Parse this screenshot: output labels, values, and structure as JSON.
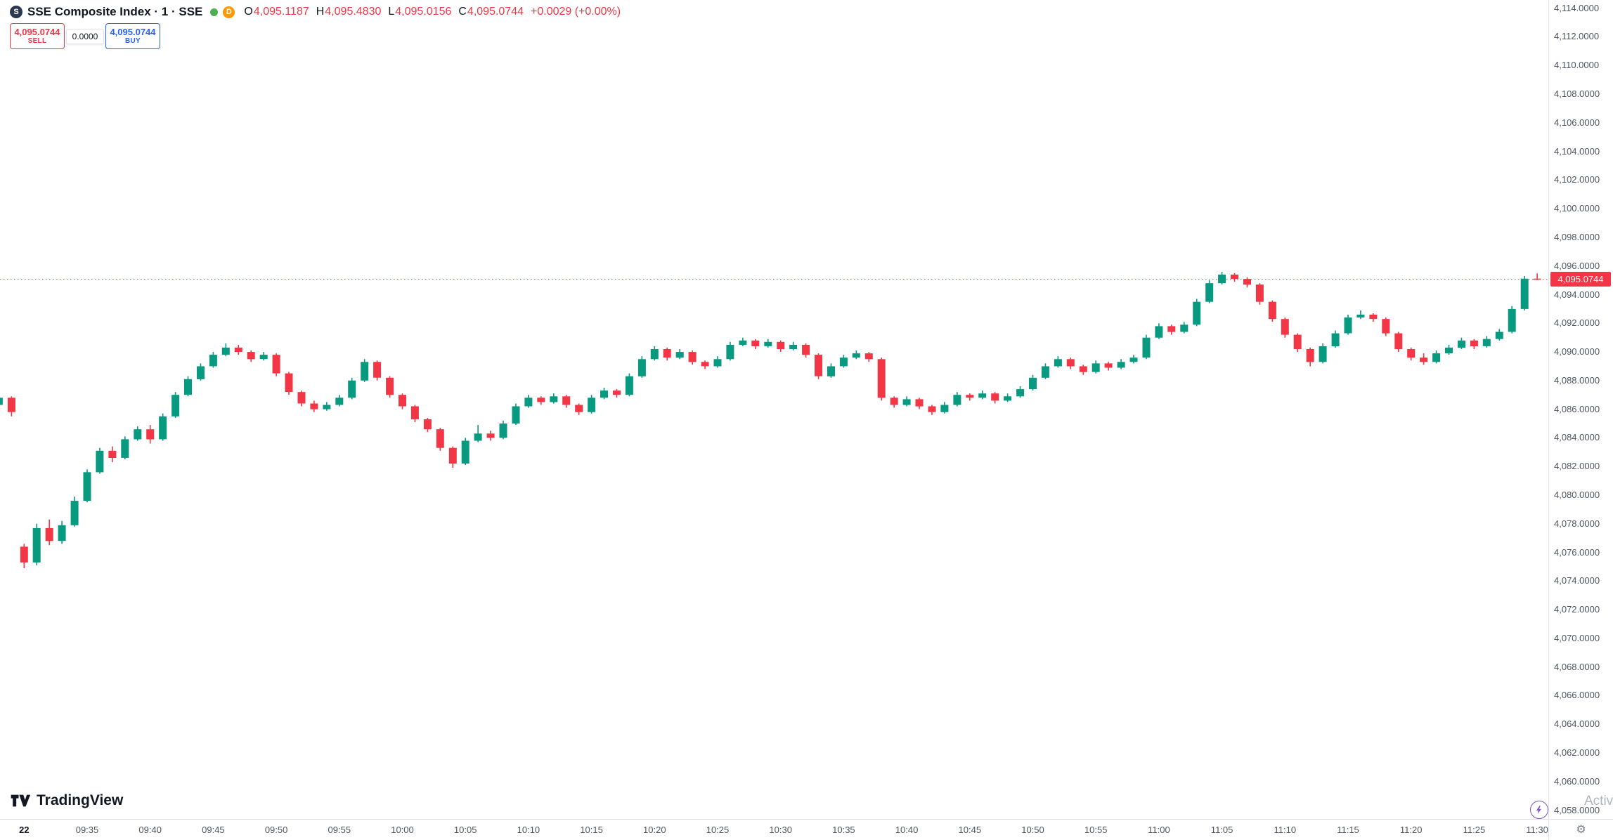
{
  "header": {
    "logo_letter": "S",
    "symbol_title": "SSE Composite Index · 1 · SSE",
    "badge_label": "D",
    "ohlc": {
      "open_label": "O",
      "open": "4,095.1187",
      "high_label": "H",
      "high": "4,095.4830",
      "low_label": "L",
      "low": "4,095.0156",
      "close_label": "C",
      "close": "4,095.0744",
      "change": "+0.0029 (+0.00%)"
    }
  },
  "trade_panel": {
    "sell_price": "4,095.0744",
    "sell_label": "SELL",
    "spread": "0.0000",
    "buy_price": "4,095.0744",
    "buy_label": "BUY"
  },
  "watermark": {
    "logo_text": "TradingView"
  },
  "footer_right": {
    "partial_text": "Activ"
  },
  "colors": {
    "up": "#089981",
    "down": "#f23645",
    "buy_accent": "#2962ff",
    "sell_accent": "#f23645",
    "badge_orange": "#ff9800",
    "status_green": "#4caf50",
    "price_tag_bg": "#f23645"
  },
  "price_scale": {
    "last_price_label": "4,095.0744",
    "ticks": [
      {
        "label": "4,114.0000",
        "value": 4114
      },
      {
        "label": "4,112.0000",
        "value": 4112
      },
      {
        "label": "4,110.0000",
        "value": 4110
      },
      {
        "label": "4,108.0000",
        "value": 4108
      },
      {
        "label": "4,106.0000",
        "value": 4106
      },
      {
        "label": "4,104.0000",
        "value": 4104
      },
      {
        "label": "4,102.0000",
        "value": 4102
      },
      {
        "label": "4,100.0000",
        "value": 4100
      },
      {
        "label": "4,098.0000",
        "value": 4098
      },
      {
        "label": "4,096.0000",
        "value": 4096
      },
      {
        "label": "4,094.0000",
        "value": 4094
      },
      {
        "label": "4,092.0000",
        "value": 4092
      },
      {
        "label": "4,090.0000",
        "value": 4090
      },
      {
        "label": "4,088.0000",
        "value": 4088
      },
      {
        "label": "4,086.0000",
        "value": 4086
      },
      {
        "label": "4,084.0000",
        "value": 4084
      },
      {
        "label": "4,082.0000",
        "value": 4082
      },
      {
        "label": "4,080.0000",
        "value": 4080
      },
      {
        "label": "4,078.0000",
        "value": 4078
      },
      {
        "label": "4,076.0000",
        "value": 4076
      },
      {
        "label": "4,074.0000",
        "value": 4074
      },
      {
        "label": "4,072.0000",
        "value": 4072
      },
      {
        "label": "4,070.0000",
        "value": 4070
      },
      {
        "label": "4,068.0000",
        "value": 4068
      },
      {
        "label": "4,066.0000",
        "value": 4066
      },
      {
        "label": "4,064.0000",
        "value": 4064
      },
      {
        "label": "4,062.0000",
        "value": 4062
      },
      {
        "label": "4,060.0000",
        "value": 4060
      },
      {
        "label": "4,058.0000",
        "value": 4058
      }
    ]
  },
  "time_scale": {
    "ticks": [
      {
        "label": "22",
        "m": 0
      },
      {
        "label": "09:35",
        "m": 5
      },
      {
        "label": "09:40",
        "m": 10
      },
      {
        "label": "09:45",
        "m": 15
      },
      {
        "label": "09:50",
        "m": 20
      },
      {
        "label": "09:55",
        "m": 25
      },
      {
        "label": "10:00",
        "m": 30
      },
      {
        "label": "10:05",
        "m": 35
      },
      {
        "label": "10:10",
        "m": 40
      },
      {
        "label": "10:15",
        "m": 45
      },
      {
        "label": "10:20",
        "m": 50
      },
      {
        "label": "10:25",
        "m": 55
      },
      {
        "label": "10:30",
        "m": 60
      },
      {
        "label": "10:35",
        "m": 65
      },
      {
        "label": "10:40",
        "m": 70
      },
      {
        "label": "10:45",
        "m": 75
      },
      {
        "label": "10:50",
        "m": 80
      },
      {
        "label": "10:55",
        "m": 85
      },
      {
        "label": "11:00",
        "m": 90
      },
      {
        "label": "11:05",
        "m": 95
      },
      {
        "label": "11:10",
        "m": 100
      },
      {
        "label": "11:15",
        "m": 105
      },
      {
        "label": "11:20",
        "m": 110
      },
      {
        "label": "11:25",
        "m": 115
      },
      {
        "label": "11:30",
        "m": 120
      }
    ]
  },
  "chart_data": {
    "type": "candlestick",
    "title": "SSE Composite Index, 1 minute, SSE",
    "xlabel": "",
    "ylabel": "",
    "y_axis": {
      "min": 4058,
      "max": 4114,
      "step": 2
    },
    "up_color": "#089981",
    "down_color": "#f23645",
    "grid": false,
    "price_line": {
      "value": 4095.0744,
      "color": "#f23645",
      "label": "4,095.0744"
    },
    "candles": [
      [
        "14:59",
        4086.3,
        4087.0,
        4086.1,
        4086.8
      ],
      [
        "15:00",
        4086.8,
        4086.9,
        4085.5,
        4085.8
      ],
      [
        "09:30",
        4076.4,
        4076.6,
        4074.9,
        4075.3
      ],
      [
        "09:31",
        4075.3,
        4078.0,
        4075.1,
        4077.7
      ],
      [
        "09:32",
        4077.7,
        4078.3,
        4076.5,
        4076.8
      ],
      [
        "09:33",
        4076.8,
        4078.2,
        4076.6,
        4077.9
      ],
      [
        "09:34",
        4077.9,
        4079.9,
        4077.8,
        4079.6
      ],
      [
        "09:35",
        4079.6,
        4081.8,
        4079.5,
        4081.6
      ],
      [
        "09:36",
        4081.6,
        4083.3,
        4081.5,
        4083.1
      ],
      [
        "09:37",
        4083.1,
        4083.4,
        4082.3,
        4082.6
      ],
      [
        "09:38",
        4082.6,
        4084.1,
        4082.5,
        4083.9
      ],
      [
        "09:39",
        4083.9,
        4084.8,
        4083.8,
        4084.6
      ],
      [
        "09:40",
        4084.6,
        4084.9,
        4083.6,
        4083.9
      ],
      [
        "09:41",
        4083.9,
        4085.7,
        4083.8,
        4085.5
      ],
      [
        "09:42",
        4085.5,
        4087.2,
        4085.4,
        4087.0
      ],
      [
        "09:43",
        4087.0,
        4088.3,
        4086.9,
        4088.1
      ],
      [
        "09:44",
        4088.1,
        4089.2,
        4088.0,
        4089.0
      ],
      [
        "09:45",
        4089.0,
        4090.0,
        4088.9,
        4089.8
      ],
      [
        "09:46",
        4089.8,
        4090.6,
        4089.7,
        4090.3
      ],
      [
        "09:47",
        4090.3,
        4090.5,
        4089.8,
        4090.0
      ],
      [
        "09:48",
        4090.0,
        4090.1,
        4089.3,
        4089.5
      ],
      [
        "09:49",
        4089.5,
        4090.0,
        4089.4,
        4089.8
      ],
      [
        "09:50",
        4089.8,
        4089.9,
        4088.3,
        4088.5
      ],
      [
        "09:51",
        4088.5,
        4088.6,
        4087.0,
        4087.2
      ],
      [
        "09:52",
        4087.2,
        4087.3,
        4086.2,
        4086.4
      ],
      [
        "09:53",
        4086.4,
        4086.6,
        4085.8,
        4086.0
      ],
      [
        "09:54",
        4086.0,
        4086.5,
        4085.9,
        4086.3
      ],
      [
        "09:55",
        4086.3,
        4087.0,
        4086.2,
        4086.8
      ],
      [
        "09:56",
        4086.8,
        4088.2,
        4086.7,
        4088.0
      ],
      [
        "09:57",
        4088.0,
        4089.5,
        4087.9,
        4089.3
      ],
      [
        "09:58",
        4089.3,
        4089.4,
        4088.0,
        4088.2
      ],
      [
        "09:59",
        4088.2,
        4088.3,
        4086.8,
        4087.0
      ],
      [
        "10:00",
        4087.0,
        4087.1,
        4086.0,
        4086.2
      ],
      [
        "10:01",
        4086.2,
        4086.3,
        4085.1,
        4085.3
      ],
      [
        "10:02",
        4085.3,
        4085.4,
        4084.4,
        4084.6
      ],
      [
        "10:03",
        4084.6,
        4084.7,
        4083.1,
        4083.3
      ],
      [
        "10:04",
        4083.3,
        4083.4,
        4081.9,
        4082.2
      ],
      [
        "10:05",
        4082.2,
        4084.0,
        4082.1,
        4083.8
      ],
      [
        "10:06",
        4083.8,
        4084.9,
        4083.7,
        4084.3
      ],
      [
        "10:07",
        4084.3,
        4084.5,
        4083.8,
        4084.0
      ],
      [
        "10:08",
        4084.0,
        4085.2,
        4083.9,
        4085.0
      ],
      [
        "10:09",
        4085.0,
        4086.4,
        4084.9,
        4086.2
      ],
      [
        "10:10",
        4086.2,
        4087.0,
        4086.1,
        4086.8
      ],
      [
        "10:11",
        4086.8,
        4086.9,
        4086.3,
        4086.5
      ],
      [
        "10:12",
        4086.5,
        4087.1,
        4086.4,
        4086.9
      ],
      [
        "10:13",
        4086.9,
        4087.0,
        4086.1,
        4086.3
      ],
      [
        "10:14",
        4086.3,
        4086.4,
        4085.6,
        4085.8
      ],
      [
        "10:15",
        4085.8,
        4087.0,
        4085.7,
        4086.8
      ],
      [
        "10:16",
        4086.8,
        4087.5,
        4086.7,
        4087.3
      ],
      [
        "10:17",
        4087.3,
        4087.4,
        4086.8,
        4087.0
      ],
      [
        "10:18",
        4087.0,
        4088.5,
        4086.9,
        4088.3
      ],
      [
        "10:19",
        4088.3,
        4089.7,
        4088.2,
        4089.5
      ],
      [
        "10:20",
        4089.5,
        4090.4,
        4089.4,
        4090.2
      ],
      [
        "10:21",
        4090.2,
        4090.3,
        4089.4,
        4089.6
      ],
      [
        "10:22",
        4089.6,
        4090.2,
        4089.5,
        4090.0
      ],
      [
        "10:23",
        4090.0,
        4090.1,
        4089.1,
        4089.3
      ],
      [
        "10:24",
        4089.3,
        4089.4,
        4088.8,
        4089.0
      ],
      [
        "10:25",
        4089.0,
        4089.7,
        4088.9,
        4089.5
      ],
      [
        "10:26",
        4089.5,
        4090.7,
        4089.4,
        4090.5
      ],
      [
        "10:27",
        4090.5,
        4091.0,
        4090.4,
        4090.8
      ],
      [
        "10:28",
        4090.8,
        4090.9,
        4090.2,
        4090.4
      ],
      [
        "10:29",
        4090.4,
        4090.9,
        4090.3,
        4090.7
      ],
      [
        "10:30",
        4090.7,
        4090.8,
        4090.0,
        4090.2
      ],
      [
        "10:31",
        4090.2,
        4090.7,
        4090.1,
        4090.5
      ],
      [
        "10:32",
        4090.5,
        4090.6,
        4089.6,
        4089.8
      ],
      [
        "10:33",
        4089.8,
        4089.9,
        4088.1,
        4088.3
      ],
      [
        "10:34",
        4088.3,
        4089.2,
        4088.2,
        4089.0
      ],
      [
        "10:35",
        4089.0,
        4089.8,
        4088.9,
        4089.6
      ],
      [
        "10:36",
        4089.6,
        4090.1,
        4089.5,
        4089.9
      ],
      [
        "10:37",
        4089.9,
        4090.0,
        4089.3,
        4089.5
      ],
      [
        "10:38",
        4089.5,
        4089.6,
        4086.6,
        4086.8
      ],
      [
        "10:39",
        4086.8,
        4086.9,
        4086.1,
        4086.3
      ],
      [
        "10:40",
        4086.3,
        4086.9,
        4086.2,
        4086.7
      ],
      [
        "10:41",
        4086.7,
        4086.8,
        4086.0,
        4086.2
      ],
      [
        "10:42",
        4086.2,
        4086.3,
        4085.6,
        4085.8
      ],
      [
        "10:43",
        4085.8,
        4086.5,
        4085.7,
        4086.3
      ],
      [
        "10:44",
        4086.3,
        4087.2,
        4086.2,
        4087.0
      ],
      [
        "10:45",
        4087.0,
        4087.1,
        4086.6,
        4086.8
      ],
      [
        "10:46",
        4086.8,
        4087.3,
        4086.7,
        4087.1
      ],
      [
        "10:47",
        4087.1,
        4087.2,
        4086.4,
        4086.6
      ],
      [
        "10:48",
        4086.6,
        4087.1,
        4086.5,
        4086.9
      ],
      [
        "10:49",
        4086.9,
        4087.6,
        4086.8,
        4087.4
      ],
      [
        "10:50",
        4087.4,
        4088.4,
        4087.3,
        4088.2
      ],
      [
        "10:51",
        4088.2,
        4089.2,
        4088.1,
        4089.0
      ],
      [
        "10:52",
        4089.0,
        4089.7,
        4088.9,
        4089.5
      ],
      [
        "10:53",
        4089.5,
        4089.6,
        4088.8,
        4089.0
      ],
      [
        "10:54",
        4089.0,
        4089.1,
        4088.4,
        4088.6
      ],
      [
        "10:55",
        4088.6,
        4089.4,
        4088.5,
        4089.2
      ],
      [
        "10:56",
        4089.2,
        4089.3,
        4088.7,
        4088.9
      ],
      [
        "10:57",
        4088.9,
        4089.5,
        4088.8,
        4089.3
      ],
      [
        "10:58",
        4089.3,
        4089.8,
        4089.2,
        4089.6
      ],
      [
        "10:59",
        4089.6,
        4091.2,
        4089.5,
        4091.0
      ],
      [
        "11:00",
        4091.0,
        4092.0,
        4090.9,
        4091.8
      ],
      [
        "11:01",
        4091.8,
        4091.9,
        4091.2,
        4091.4
      ],
      [
        "11:02",
        4091.4,
        4092.1,
        4091.3,
        4091.9
      ],
      [
        "11:03",
        4091.9,
        4093.7,
        4091.8,
        4093.5
      ],
      [
        "11:04",
        4093.5,
        4095.0,
        4093.4,
        4094.8
      ],
      [
        "11:05",
        4094.8,
        4095.6,
        4094.7,
        4095.4
      ],
      [
        "11:06",
        4095.4,
        4095.5,
        4094.9,
        4095.1
      ],
      [
        "11:07",
        4095.1,
        4095.2,
        4094.5,
        4094.7
      ],
      [
        "11:08",
        4094.7,
        4094.8,
        4093.3,
        4093.5
      ],
      [
        "11:09",
        4093.5,
        4093.6,
        4092.1,
        4092.3
      ],
      [
        "11:10",
        4092.3,
        4092.4,
        4091.0,
        4091.2
      ],
      [
        "11:11",
        4091.2,
        4091.3,
        4090.0,
        4090.2
      ],
      [
        "11:12",
        4090.2,
        4090.3,
        4089.0,
        4089.3
      ],
      [
        "11:13",
        4089.3,
        4090.6,
        4089.2,
        4090.4
      ],
      [
        "11:14",
        4090.4,
        4091.5,
        4090.3,
        4091.3
      ],
      [
        "11:15",
        4091.3,
        4092.6,
        4091.2,
        4092.4
      ],
      [
        "11:16",
        4092.4,
        4092.9,
        4092.3,
        4092.6
      ],
      [
        "11:17",
        4092.6,
        4092.7,
        4092.1,
        4092.3
      ],
      [
        "11:18",
        4092.3,
        4092.4,
        4091.1,
        4091.3
      ],
      [
        "11:19",
        4091.3,
        4091.4,
        4090.0,
        4090.2
      ],
      [
        "11:20",
        4090.2,
        4090.3,
        4089.4,
        4089.6
      ],
      [
        "11:21",
        4089.6,
        4089.9,
        4089.1,
        4089.3
      ],
      [
        "11:22",
        4089.3,
        4090.1,
        4089.2,
        4089.9
      ],
      [
        "11:23",
        4089.9,
        4090.5,
        4089.8,
        4090.3
      ],
      [
        "11:24",
        4090.3,
        4091.0,
        4090.2,
        4090.8
      ],
      [
        "11:25",
        4090.8,
        4090.9,
        4090.2,
        4090.4
      ],
      [
        "11:26",
        4090.4,
        4091.1,
        4090.3,
        4090.9
      ],
      [
        "11:27",
        4090.9,
        4091.6,
        4090.8,
        4091.4
      ],
      [
        "11:28",
        4091.4,
        4093.2,
        4091.3,
        4093.0
      ],
      [
        "11:29",
        4093.0,
        4095.3,
        4092.9,
        4095.12
      ],
      [
        "11:30",
        4095.1187,
        4095.483,
        4095.0156,
        4095.0744
      ]
    ]
  }
}
